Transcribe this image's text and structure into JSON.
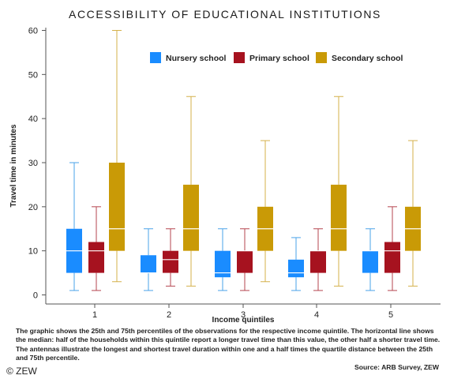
{
  "chart_data": {
    "type": "boxplot",
    "title": "ACCESSIBILITY OF EDUCATIONAL INSTITUTIONS",
    "xlabel": "Income quintiles",
    "ylabel": "Travel time in minutes",
    "ylim": [
      0,
      62
    ],
    "yticks": [
      0,
      10,
      20,
      30,
      40,
      50,
      60
    ],
    "categories": [
      "1",
      "2",
      "3",
      "4",
      "5"
    ],
    "legend_position": "top-center",
    "series": [
      {
        "name": "Nursery school",
        "color": "#1a8cff",
        "whisker_color": "#4aa3e8",
        "boxes": [
          {
            "min": 1,
            "q1": 5,
            "median": 10,
            "q3": 15,
            "max": 30
          },
          {
            "min": 1,
            "q1": 5,
            "median": 5,
            "q3": 9,
            "max": 15
          },
          {
            "min": 1,
            "q1": 4,
            "median": 5,
            "q3": 10,
            "max": 15
          },
          {
            "min": 1,
            "q1": 4,
            "median": 5,
            "q3": 8,
            "max": 13
          },
          {
            "min": 1,
            "q1": 5,
            "median": 10,
            "q3": 10,
            "max": 15
          }
        ]
      },
      {
        "name": "Primary school",
        "color": "#a6121f",
        "whisker_color": "#b5454f",
        "boxes": [
          {
            "min": 1,
            "q1": 5,
            "median": 10,
            "q3": 12,
            "max": 20
          },
          {
            "min": 2,
            "q1": 5,
            "median": 8,
            "q3": 10,
            "max": 15
          },
          {
            "min": 1,
            "q1": 5,
            "median": 10,
            "q3": 10,
            "max": 15
          },
          {
            "min": 1,
            "q1": 5,
            "median": 10,
            "q3": 10,
            "max": 15
          },
          {
            "min": 1,
            "q1": 5,
            "median": 10,
            "q3": 12,
            "max": 20
          }
        ]
      },
      {
        "name": "Secondary school",
        "color": "#c99a06",
        "whisker_color": "#d4b04a",
        "boxes": [
          {
            "min": 3,
            "q1": 10,
            "median": 15,
            "q3": 30,
            "max": 60
          },
          {
            "min": 2,
            "q1": 10,
            "median": 15,
            "q3": 25,
            "max": 45
          },
          {
            "min": 3,
            "q1": 10,
            "median": 15,
            "q3": 20,
            "max": 35
          },
          {
            "min": 2,
            "q1": 10,
            "median": 15,
            "q3": 25,
            "max": 45
          },
          {
            "min": 2,
            "q1": 10,
            "median": 15,
            "q3": 20,
            "max": 35
          }
        ]
      }
    ]
  },
  "caption": "The graphic shows the 25th and 75th percentiles of the observations for the respective income quintile. The horizontal line shows the median: half of the households within this quintile report a longer travel time than this value, the other half a shorter travel time. The antennas illustrate the longest and shortest travel duration within one and a half times the quartile distance between the 25th and 75th percentile.",
  "source": "Source: ARB Survey, ZEW",
  "copyright": "© ZEW"
}
